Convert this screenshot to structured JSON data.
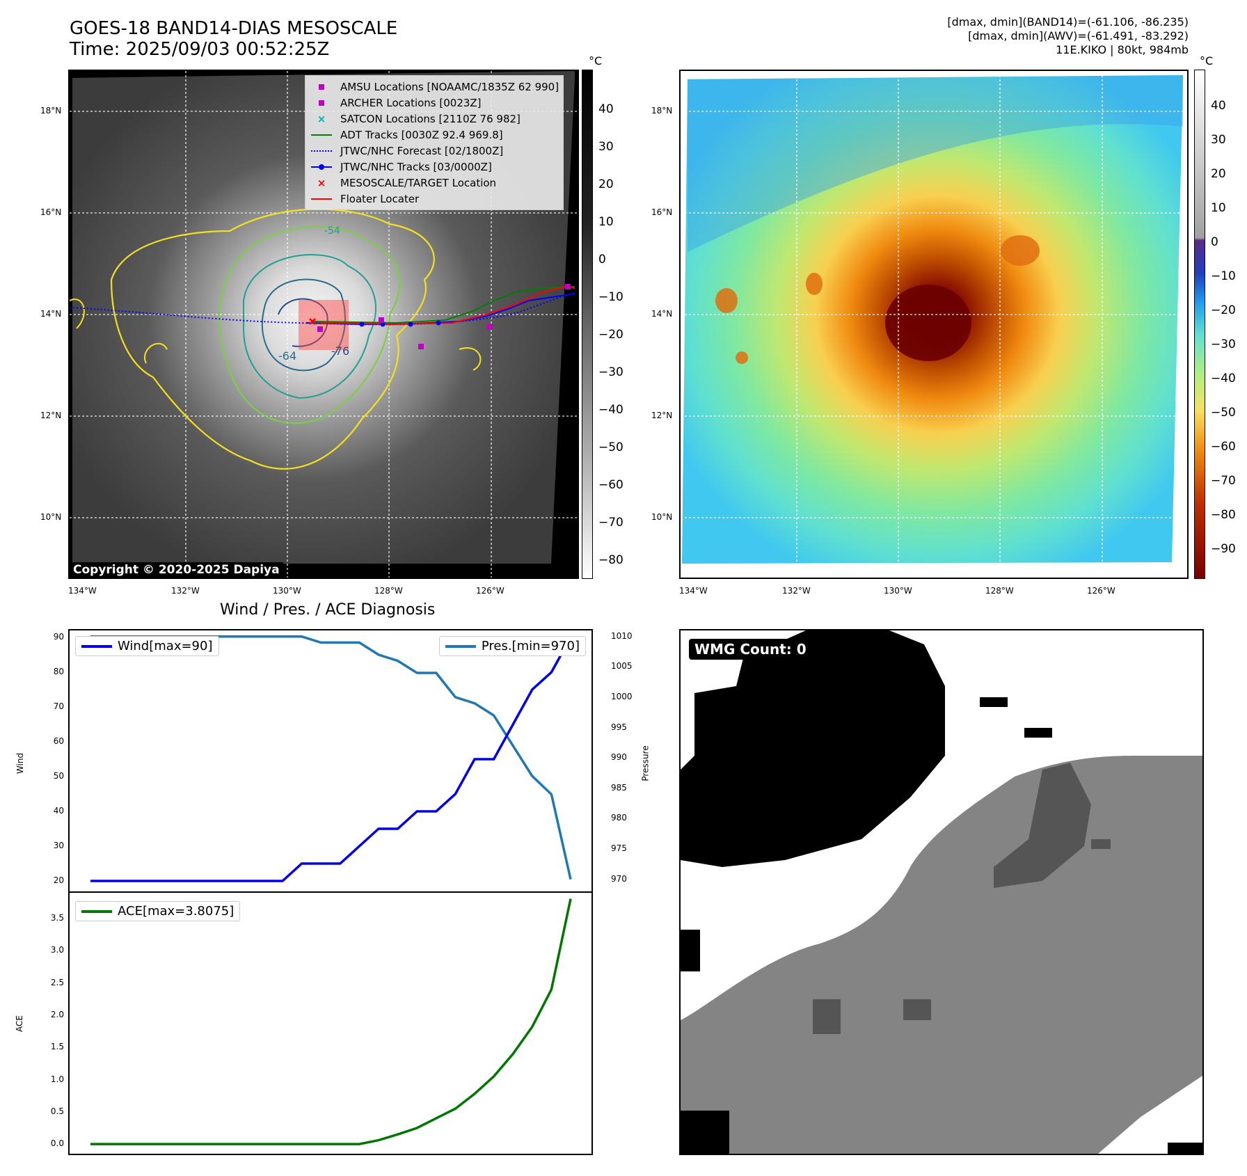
{
  "header": {
    "title_line1": "GOES-18 BAND14-DIAS MESOSCALE",
    "title_line2": "Time: 2025/09/03 00:52:25Z",
    "info_line1": "[dmax, dmin](BAND14)=(-61.106, -86.235)",
    "info_line2": "[dmax, dmin](AWV)=(-61.491, -83.292)",
    "info_line3": "11E.KIKO | 80kt, 984mb"
  },
  "map_axes": {
    "lat_labels": [
      "18°N",
      "16°N",
      "14°N",
      "12°N",
      "10°N"
    ],
    "lon_labels": [
      "134°W",
      "132°W",
      "130°W",
      "128°W",
      "126°W"
    ]
  },
  "ir_panel": {
    "colorbar_unit": "°C",
    "colorbar_ticks": [
      "40",
      "30",
      "20",
      "10",
      "0",
      "−10",
      "−20",
      "−30",
      "−40",
      "−50",
      "−60",
      "−70",
      "−80"
    ],
    "copyright": "Copyright © 2020-2025 Dapiya",
    "contour_labels": [
      "-64",
      "-76",
      "-54"
    ],
    "legend": [
      {
        "label": "AMSU Locations [NOAAMC/1835Z 62 990]",
        "marker": "square-marker",
        "color": "#c000c0"
      },
      {
        "label": "ARCHER Locations [0023Z]",
        "marker": "square-marker",
        "color": "#c000c0"
      },
      {
        "label": "SATCON Locations [2110Z 76 982]",
        "marker": "x-marker",
        "color": "#00b0b0"
      },
      {
        "label": "ADT Tracks [0030Z 92.4 969.8]",
        "marker": "solid-line",
        "color": "#008000"
      },
      {
        "label": "JTWC/NHC Forecast [02/1800Z]",
        "marker": "dotted-line",
        "color": "#0000ff"
      },
      {
        "label": "JTWC/NHC Tracks [03/0000Z]",
        "marker": "dot-line",
        "color": "#0000ff"
      },
      {
        "label": "MESOSCALE/TARGET Location",
        "marker": "x-marker",
        "color": "#ff0000"
      },
      {
        "label": "Floater Locater",
        "marker": "solid-line",
        "color": "#ff0000"
      }
    ]
  },
  "color_panel": {
    "colorbar_unit": "°C",
    "colorbar_ticks": [
      "40",
      "30",
      "20",
      "10",
      "0",
      "−10",
      "−20",
      "−30",
      "−40",
      "−50",
      "−60",
      "−70",
      "−80",
      "−90"
    ]
  },
  "wmg_panel": {
    "label": "WMG Count: 0"
  },
  "colors": {
    "wind": "#0000ee",
    "pressure": "#1f77b4",
    "ace": "#007700"
  },
  "chart_data": [
    {
      "type": "line",
      "title": "Wind / Pres. / ACE Diagnosis",
      "ylabel": "Wind",
      "ylabel_right": "Pressure",
      "ylim": [
        17,
        92
      ],
      "ylim_right": [
        968,
        1011
      ],
      "yticks": [
        "90",
        "80",
        "70",
        "60",
        "50",
        "40",
        "30",
        "20"
      ],
      "yticks_right": [
        "1010",
        "1005",
        "1000",
        "995",
        "990",
        "985",
        "980",
        "975",
        "970"
      ],
      "x": [
        0,
        1,
        2,
        3,
        4,
        5,
        6,
        7,
        8,
        9,
        10,
        11,
        12,
        13,
        14,
        15,
        16,
        17,
        18,
        19,
        20,
        21,
        22,
        23,
        24,
        25
      ],
      "series": [
        {
          "name": "Wind[max=90]",
          "axis": "left",
          "values": [
            20,
            20,
            20,
            20,
            20,
            20,
            20,
            20,
            20,
            20,
            20,
            25,
            25,
            25,
            30,
            35,
            35,
            40,
            40,
            45,
            55,
            55,
            65,
            75,
            80,
            90
          ]
        },
        {
          "name": "Pres.[min=970]",
          "axis": "right",
          "values": [
            1010,
            1010,
            1010,
            1010,
            1010,
            1010,
            1010,
            1010,
            1010,
            1010,
            1010,
            1010,
            1009,
            1009,
            1009,
            1007,
            1006,
            1004,
            1004,
            1000,
            999,
            997,
            992,
            987,
            984,
            970
          ]
        }
      ]
    },
    {
      "type": "line",
      "ylabel": "ACE",
      "ylim": [
        -0.15,
        3.9
      ],
      "yticks": [
        "3.5",
        "3.0",
        "2.5",
        "2.0",
        "1.5",
        "1.0",
        "0.5",
        "0.0"
      ],
      "x": [
        0,
        1,
        2,
        3,
        4,
        5,
        6,
        7,
        8,
        9,
        10,
        11,
        12,
        13,
        14,
        15,
        16,
        17,
        18,
        19,
        20,
        21,
        22,
        23,
        24,
        25
      ],
      "series": [
        {
          "name": "ACE[max=3.8075]",
          "values": [
            0,
            0,
            0,
            0,
            0,
            0,
            0,
            0,
            0,
            0,
            0,
            0,
            0,
            0,
            0,
            0.06,
            0.15,
            0.25,
            0.4,
            0.55,
            0.78,
            1.05,
            1.4,
            1.82,
            2.4,
            3.8075
          ]
        }
      ]
    }
  ]
}
